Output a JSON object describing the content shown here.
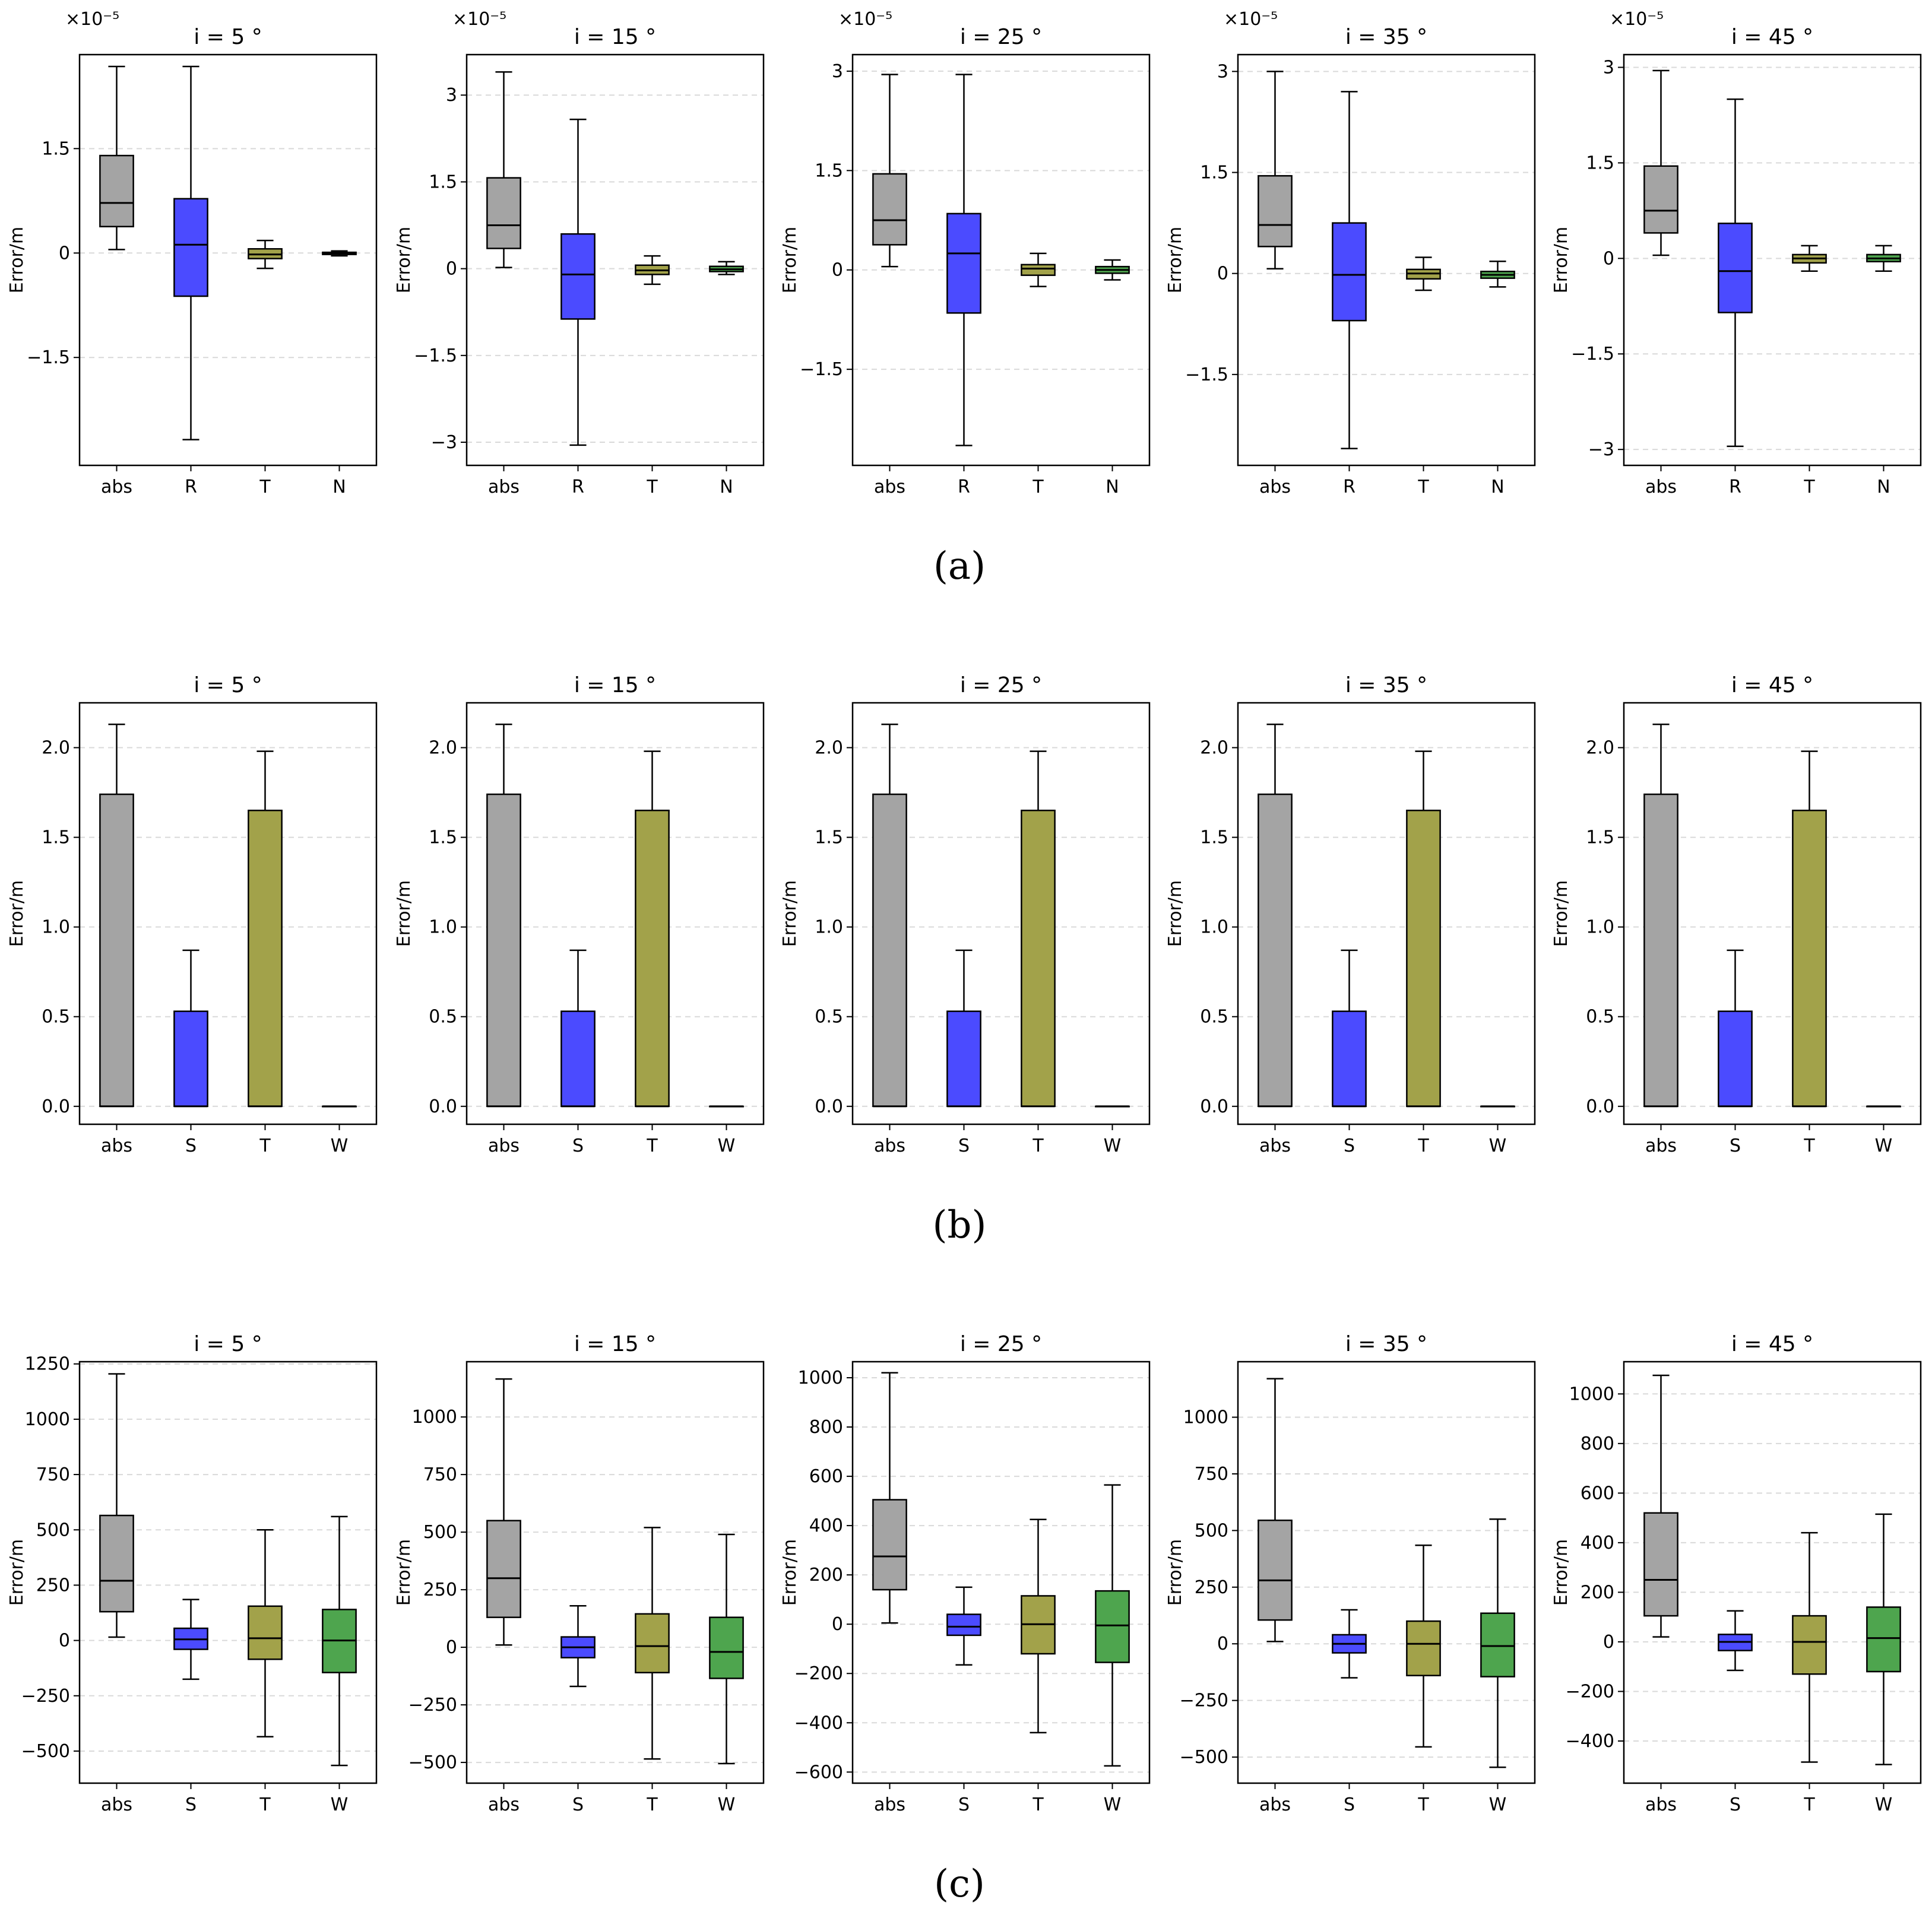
{
  "colors": {
    "abs": "#a4a4a4",
    "R": "#4b4bff",
    "S": "#4b4bff",
    "T": "#a2a24a",
    "N": "#4ea54e",
    "W": "#4ea54e",
    "edge": "#000000",
    "grid": "#d9d9d9"
  },
  "rows": [
    {
      "label": "(a)",
      "offset_text": "×10⁻⁵"
    },
    {
      "label": "(b)"
    },
    {
      "label": "(c)"
    }
  ],
  "chart_data": [
    {
      "type": "box",
      "row": 0,
      "col": 0,
      "title": "i = 5 °",
      "ylabel": "Error/m",
      "ylim": [
        -3.05,
        2.85
      ],
      "yscale_note": "×10⁻⁵",
      "yticks": [
        1.5,
        0,
        -1.5
      ],
      "ytick_labels": [
        "1.5",
        "0",
        "−1.5"
      ],
      "categories": [
        "abs",
        "R",
        "T",
        "N"
      ],
      "boxes": [
        {
          "whislo": 0.05,
          "q1": 0.38,
          "med": 0.72,
          "q3": 1.4,
          "whishi": 2.68
        },
        {
          "whislo": -2.68,
          "q1": -0.62,
          "med": 0.12,
          "q3": 0.78,
          "whishi": 2.68
        },
        {
          "whislo": -0.22,
          "q1": -0.08,
          "med": -0.02,
          "q3": 0.06,
          "whishi": 0.18
        },
        {
          "whislo": -0.04,
          "q1": -0.02,
          "med": -0.01,
          "q3": 0.01,
          "whishi": 0.03
        }
      ]
    },
    {
      "type": "box",
      "row": 0,
      "col": 1,
      "title": "i = 15 °",
      "ylabel": "Error/m",
      "ylim": [
        -3.4,
        3.7
      ],
      "yscale_note": "×10⁻⁵",
      "yticks": [
        3,
        1.5,
        0,
        -1.5,
        -3
      ],
      "ytick_labels": [
        "3",
        "1.5",
        "0",
        "−1.5",
        "−3"
      ],
      "categories": [
        "abs",
        "R",
        "T",
        "N"
      ],
      "boxes": [
        {
          "whislo": 0.02,
          "q1": 0.35,
          "med": 0.75,
          "q3": 1.57,
          "whishi": 3.4
        },
        {
          "whislo": -3.05,
          "q1": -0.87,
          "med": -0.1,
          "q3": 0.6,
          "whishi": 2.58
        },
        {
          "whislo": -0.27,
          "q1": -0.1,
          "med": -0.03,
          "q3": 0.06,
          "whishi": 0.22
        },
        {
          "whislo": -0.1,
          "q1": -0.05,
          "med": -0.01,
          "q3": 0.04,
          "whishi": 0.12
        }
      ]
    },
    {
      "type": "box",
      "row": 0,
      "col": 2,
      "title": "i = 25 °",
      "ylabel": "Error/m",
      "ylim": [
        -2.95,
        3.25
      ],
      "yscale_note": "×10⁻⁵",
      "yticks": [
        3,
        1.5,
        0,
        -1.5
      ],
      "ytick_labels": [
        "3",
        "1.5",
        "0",
        "−1.5"
      ],
      "categories": [
        "abs",
        "R",
        "T",
        "N"
      ],
      "boxes": [
        {
          "whislo": 0.05,
          "q1": 0.38,
          "med": 0.75,
          "q3": 1.45,
          "whishi": 2.95
        },
        {
          "whislo": -2.65,
          "q1": -0.65,
          "med": 0.25,
          "q3": 0.85,
          "whishi": 2.95
        },
        {
          "whislo": -0.25,
          "q1": -0.08,
          "med": 0.02,
          "q3": 0.08,
          "whishi": 0.25
        },
        {
          "whislo": -0.15,
          "q1": -0.05,
          "med": 0.0,
          "q3": 0.05,
          "whishi": 0.15
        }
      ]
    },
    {
      "type": "box",
      "row": 0,
      "col": 3,
      "title": "i = 35 °",
      "ylabel": "Error/m",
      "ylim": [
        -2.85,
        3.25
      ],
      "yscale_note": "×10⁻⁵",
      "yticks": [
        3,
        1.5,
        0,
        -1.5
      ],
      "ytick_labels": [
        "3",
        "1.5",
        "0",
        "−1.5"
      ],
      "categories": [
        "abs",
        "R",
        "T",
        "N"
      ],
      "boxes": [
        {
          "whislo": 0.07,
          "q1": 0.4,
          "med": 0.72,
          "q3": 1.45,
          "whishi": 3.0
        },
        {
          "whislo": -2.6,
          "q1": -0.7,
          "med": -0.02,
          "q3": 0.75,
          "whishi": 2.7
        },
        {
          "whislo": -0.25,
          "q1": -0.08,
          "med": 0.0,
          "q3": 0.06,
          "whishi": 0.24
        },
        {
          "whislo": -0.2,
          "q1": -0.07,
          "med": -0.02,
          "q3": 0.03,
          "whishi": 0.18
        }
      ]
    },
    {
      "type": "box",
      "row": 0,
      "col": 4,
      "title": "i = 45 °",
      "ylabel": "Error/m",
      "ylim": [
        -3.25,
        3.2
      ],
      "yscale_note": "×10⁻⁵",
      "yticks": [
        3,
        1.5,
        0,
        -1.5,
        -3
      ],
      "ytick_labels": [
        "3",
        "1.5",
        "0",
        "−1.5",
        "−3"
      ],
      "categories": [
        "abs",
        "R",
        "T",
        "N"
      ],
      "boxes": [
        {
          "whislo": 0.05,
          "q1": 0.4,
          "med": 0.75,
          "q3": 1.45,
          "whishi": 2.95
        },
        {
          "whislo": -2.95,
          "q1": -0.85,
          "med": -0.2,
          "q3": 0.55,
          "whishi": 2.5
        },
        {
          "whislo": -0.2,
          "q1": -0.07,
          "med": 0.0,
          "q3": 0.06,
          "whishi": 0.2
        },
        {
          "whislo": -0.2,
          "q1": -0.05,
          "med": 0.0,
          "q3": 0.06,
          "whishi": 0.2
        }
      ]
    },
    {
      "type": "box",
      "row": 1,
      "col": 0,
      "title": "i = 5 °",
      "ylabel": "Error/m",
      "ylim": [
        -0.1,
        2.25
      ],
      "yticks": [
        0,
        0.5,
        1.0,
        1.5,
        2.0
      ],
      "ytick_labels": [
        "0.0",
        "0.5",
        "1.0",
        "1.5",
        "2.0"
      ],
      "categories": [
        "abs",
        "S",
        "T",
        "W"
      ],
      "boxes": [
        {
          "whislo": 0,
          "q1": 0,
          "med": 0,
          "q3": 1.74,
          "whishi": 2.13
        },
        {
          "whislo": 0,
          "q1": 0,
          "med": 0,
          "q3": 0.53,
          "whishi": 0.87
        },
        {
          "whislo": 0,
          "q1": 0,
          "med": 0,
          "q3": 1.65,
          "whishi": 1.98
        },
        {
          "whislo": 0,
          "q1": 0,
          "med": 0,
          "q3": 0,
          "whishi": 0
        }
      ]
    },
    {
      "type": "box",
      "row": 1,
      "col": 1,
      "title": "i = 15 °",
      "ylabel": "Error/m",
      "ylim": [
        -0.1,
        2.25
      ],
      "yticks": [
        0,
        0.5,
        1.0,
        1.5,
        2.0
      ],
      "ytick_labels": [
        "0.0",
        "0.5",
        "1.0",
        "1.5",
        "2.0"
      ],
      "categories": [
        "abs",
        "S",
        "T",
        "W"
      ],
      "boxes": [
        {
          "whislo": 0,
          "q1": 0,
          "med": 0,
          "q3": 1.74,
          "whishi": 2.13
        },
        {
          "whislo": 0,
          "q1": 0,
          "med": 0,
          "q3": 0.53,
          "whishi": 0.87
        },
        {
          "whislo": 0,
          "q1": 0,
          "med": 0,
          "q3": 1.65,
          "whishi": 1.98
        },
        {
          "whislo": 0,
          "q1": 0,
          "med": 0,
          "q3": 0,
          "whishi": 0
        }
      ]
    },
    {
      "type": "box",
      "row": 1,
      "col": 2,
      "title": "i = 25 °",
      "ylabel": "Error/m",
      "ylim": [
        -0.1,
        2.25
      ],
      "yticks": [
        0,
        0.5,
        1.0,
        1.5,
        2.0
      ],
      "ytick_labels": [
        "0.0",
        "0.5",
        "1.0",
        "1.5",
        "2.0"
      ],
      "categories": [
        "abs",
        "S",
        "T",
        "W"
      ],
      "boxes": [
        {
          "whislo": 0,
          "q1": 0,
          "med": 0,
          "q3": 1.74,
          "whishi": 2.13
        },
        {
          "whislo": 0,
          "q1": 0,
          "med": 0,
          "q3": 0.53,
          "whishi": 0.87
        },
        {
          "whislo": 0,
          "q1": 0,
          "med": 0,
          "q3": 1.65,
          "whishi": 1.98
        },
        {
          "whislo": 0,
          "q1": 0,
          "med": 0,
          "q3": 0,
          "whishi": 0
        }
      ]
    },
    {
      "type": "box",
      "row": 1,
      "col": 3,
      "title": "i = 35 °",
      "ylabel": "Error/m",
      "ylim": [
        -0.1,
        2.25
      ],
      "yticks": [
        0,
        0.5,
        1.0,
        1.5,
        2.0
      ],
      "ytick_labels": [
        "0.0",
        "0.5",
        "1.0",
        "1.5",
        "2.0"
      ],
      "categories": [
        "abs",
        "S",
        "T",
        "W"
      ],
      "boxes": [
        {
          "whislo": 0,
          "q1": 0,
          "med": 0,
          "q3": 1.74,
          "whishi": 2.13
        },
        {
          "whislo": 0,
          "q1": 0,
          "med": 0,
          "q3": 0.53,
          "whishi": 0.87
        },
        {
          "whislo": 0,
          "q1": 0,
          "med": 0,
          "q3": 1.65,
          "whishi": 1.98
        },
        {
          "whislo": 0,
          "q1": 0,
          "med": 0,
          "q3": 0,
          "whishi": 0
        }
      ]
    },
    {
      "type": "box",
      "row": 1,
      "col": 4,
      "title": "i = 45 °",
      "ylabel": "Error/m",
      "ylim": [
        -0.1,
        2.25
      ],
      "yticks": [
        0,
        0.5,
        1.0,
        1.5,
        2.0
      ],
      "ytick_labels": [
        "0.0",
        "0.5",
        "1.0",
        "1.5",
        "2.0"
      ],
      "categories": [
        "abs",
        "S",
        "T",
        "W"
      ],
      "boxes": [
        {
          "whislo": 0,
          "q1": 0,
          "med": 0,
          "q3": 1.74,
          "whishi": 2.13
        },
        {
          "whislo": 0,
          "q1": 0,
          "med": 0,
          "q3": 0.53,
          "whishi": 0.87
        },
        {
          "whislo": 0,
          "q1": 0,
          "med": 0,
          "q3": 1.65,
          "whishi": 1.98
        },
        {
          "whislo": 0,
          "q1": 0,
          "med": 0,
          "q3": 0,
          "whishi": 0
        }
      ]
    },
    {
      "type": "box",
      "row": 2,
      "col": 0,
      "title": "i = 5 °",
      "ylabel": "Error/m",
      "ylim": [
        -645,
        1260
      ],
      "yticks": [
        1250,
        1000,
        750,
        500,
        250,
        0,
        -250,
        -500
      ],
      "ytick_labels": [
        "1250",
        "1000",
        "750",
        "500",
        "250",
        "0",
        "−250",
        "−500"
      ],
      "categories": [
        "abs",
        "S",
        "T",
        "W"
      ],
      "boxes": [
        {
          "whislo": 15,
          "q1": 130,
          "med": 270,
          "q3": 565,
          "whishi": 1205
        },
        {
          "whislo": -175,
          "q1": -40,
          "med": 5,
          "q3": 55,
          "whishi": 185
        },
        {
          "whislo": -435,
          "q1": -85,
          "med": 10,
          "q3": 155,
          "whishi": 500
        },
        {
          "whislo": -565,
          "q1": -145,
          "med": 0,
          "q3": 140,
          "whishi": 560
        }
      ]
    },
    {
      "type": "box",
      "row": 2,
      "col": 1,
      "title": "i = 15 °",
      "ylabel": "Error/m",
      "ylim": [
        -590,
        1240
      ],
      "yticks": [
        1000,
        750,
        500,
        250,
        0,
        -250,
        -500
      ],
      "ytick_labels": [
        "1000",
        "750",
        "500",
        "250",
        "0",
        "−250",
        "−500"
      ],
      "categories": [
        "abs",
        "S",
        "T",
        "W"
      ],
      "boxes": [
        {
          "whislo": 10,
          "q1": 130,
          "med": 300,
          "q3": 550,
          "whishi": 1165
        },
        {
          "whislo": -170,
          "q1": -45,
          "med": 0,
          "q3": 45,
          "whishi": 180
        },
        {
          "whislo": -485,
          "q1": -110,
          "med": 5,
          "q3": 145,
          "whishi": 520
        },
        {
          "whislo": -505,
          "q1": -135,
          "med": -20,
          "q3": 130,
          "whishi": 490
        }
      ]
    },
    {
      "type": "box",
      "row": 2,
      "col": 2,
      "title": "i = 25 °",
      "ylabel": "Error/m",
      "ylim": [
        -645,
        1065
      ],
      "yticks": [
        1000,
        800,
        600,
        400,
        200,
        0,
        -200,
        -400,
        -600
      ],
      "ytick_labels": [
        "1000",
        "800",
        "600",
        "400",
        "200",
        "0",
        "−200",
        "−400",
        "−600"
      ],
      "categories": [
        "abs",
        "S",
        "T",
        "W"
      ],
      "boxes": [
        {
          "whislo": 5,
          "q1": 140,
          "med": 275,
          "q3": 505,
          "whishi": 1020
        },
        {
          "whislo": -165,
          "q1": -45,
          "med": -10,
          "q3": 40,
          "whishi": 150
        },
        {
          "whislo": -440,
          "q1": -120,
          "med": 0,
          "q3": 115,
          "whishi": 425
        },
        {
          "whislo": -575,
          "q1": -155,
          "med": -5,
          "q3": 135,
          "whishi": 565
        }
      ]
    },
    {
      "type": "box",
      "row": 2,
      "col": 3,
      "title": "i = 35 °",
      "ylabel": "Error/m",
      "ylim": [
        -615,
        1245
      ],
      "yticks": [
        1000,
        750,
        500,
        250,
        0,
        -250,
        -500
      ],
      "ytick_labels": [
        "1000",
        "750",
        "500",
        "250",
        "0",
        "−250",
        "−500"
      ],
      "categories": [
        "abs",
        "S",
        "T",
        "W"
      ],
      "boxes": [
        {
          "whislo": 10,
          "q1": 105,
          "med": 280,
          "q3": 545,
          "whishi": 1170
        },
        {
          "whislo": -150,
          "q1": -40,
          "med": 0,
          "q3": 40,
          "whishi": 150
        },
        {
          "whislo": -455,
          "q1": -140,
          "med": 0,
          "q3": 100,
          "whishi": 435
        },
        {
          "whislo": -545,
          "q1": -145,
          "med": -10,
          "q3": 135,
          "whishi": 550
        }
      ]
    },
    {
      "type": "box",
      "row": 2,
      "col": 4,
      "title": "i = 45 °",
      "ylabel": "Error/m",
      "ylim": [
        -570,
        1130
      ],
      "yticks": [
        1000,
        800,
        600,
        400,
        200,
        0,
        -200,
        -400
      ],
      "ytick_labels": [
        "1000",
        "800",
        "600",
        "400",
        "200",
        "0",
        "−200",
        "−400"
      ],
      "categories": [
        "abs",
        "S",
        "T",
        "W"
      ],
      "boxes": [
        {
          "whislo": 20,
          "q1": 105,
          "med": 250,
          "q3": 520,
          "whishi": 1075
        },
        {
          "whislo": -115,
          "q1": -35,
          "med": 0,
          "q3": 30,
          "whishi": 125
        },
        {
          "whislo": -485,
          "q1": -130,
          "med": 0,
          "q3": 105,
          "whishi": 440
        },
        {
          "whislo": -495,
          "q1": -120,
          "med": 15,
          "q3": 140,
          "whishi": 515
        }
      ]
    }
  ]
}
